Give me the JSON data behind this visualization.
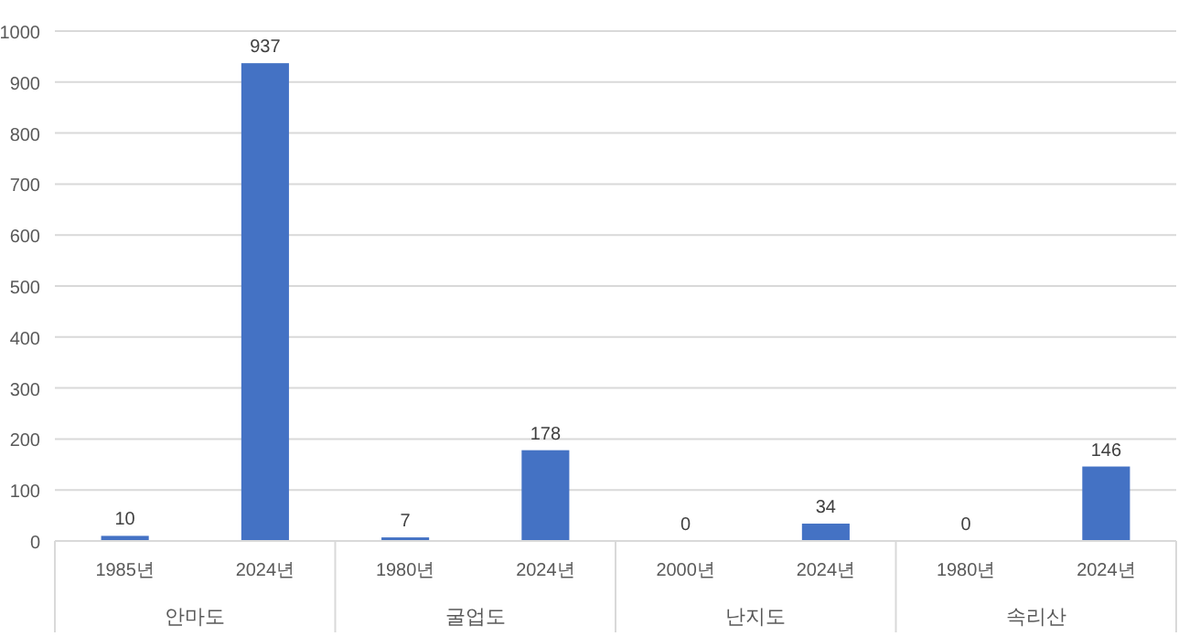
{
  "chart_data": {
    "type": "bar",
    "categories": [
      "1985년",
      "2024년",
      "1980년",
      "2024년",
      "2000년",
      "2024년",
      "1980년",
      "2024년"
    ],
    "values": [
      10,
      937,
      7,
      178,
      0,
      34,
      0,
      146
    ],
    "color": "#4472c4",
    "ylim": [
      0,
      1000
    ],
    "yticks": [
      0,
      100,
      200,
      300,
      400,
      500,
      600,
      700,
      800,
      900,
      1000
    ],
    "grid": "y",
    "data_labels": true,
    "annotations": [
      "안마도",
      "굴업도",
      "난지도",
      "속리산"
    ]
  }
}
